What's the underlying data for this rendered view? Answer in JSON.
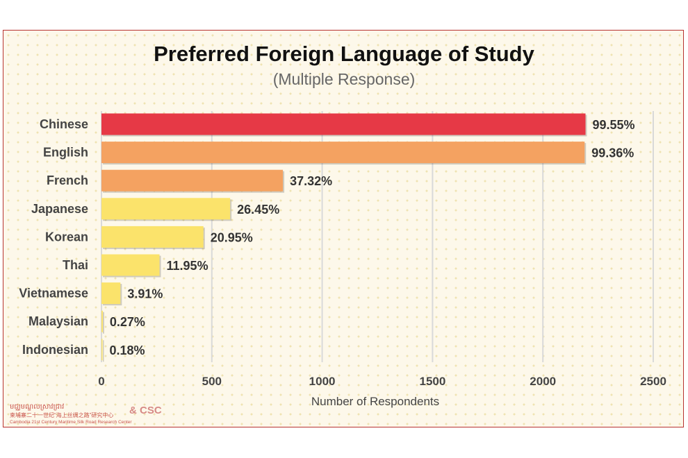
{
  "title": "Preferred Foreign Language of Study",
  "subtitle": "(Multiple Response)",
  "footer": {
    "partner": "& CSC",
    "org_khmer": "មជ្ឈមណ្ឌលស្រាវជ្រាវ",
    "org_chinese": "柬埔寨二十一世纪“海上丝绸之路”研究中心",
    "org_english": "Cambodia 21st Century Maritime Silk Road Research Center"
  },
  "chart_data": {
    "type": "bar",
    "orientation": "horizontal",
    "title": "Preferred Foreign Language of Study",
    "subtitle": "(Multiple Response)",
    "xlabel": "Number of Respondents",
    "xlim": [
      0,
      2500
    ],
    "xticks": [
      0,
      500,
      1000,
      1500,
      2000,
      2500
    ],
    "grid": true,
    "categories": [
      "Chinese",
      "English",
      "French",
      "Japanese",
      "Korean",
      "Thai",
      "Vietnamese",
      "Malaysian",
      "Indonesian"
    ],
    "values": [
      2193,
      2189,
      822,
      583,
      462,
      263,
      86,
      6,
      4
    ],
    "labels": [
      "99.55%",
      "99.36%",
      "37.32%",
      "26.45%",
      "20.95%",
      "11.95%",
      "3.91%",
      "0.27%",
      "0.18%"
    ],
    "colors": [
      "#e63946",
      "#f4a261",
      "#f4a261",
      "#fbe36b",
      "#fbe36b",
      "#fbe36b",
      "#fbe36b",
      "#fbe36b",
      "#fbe36b"
    ]
  }
}
